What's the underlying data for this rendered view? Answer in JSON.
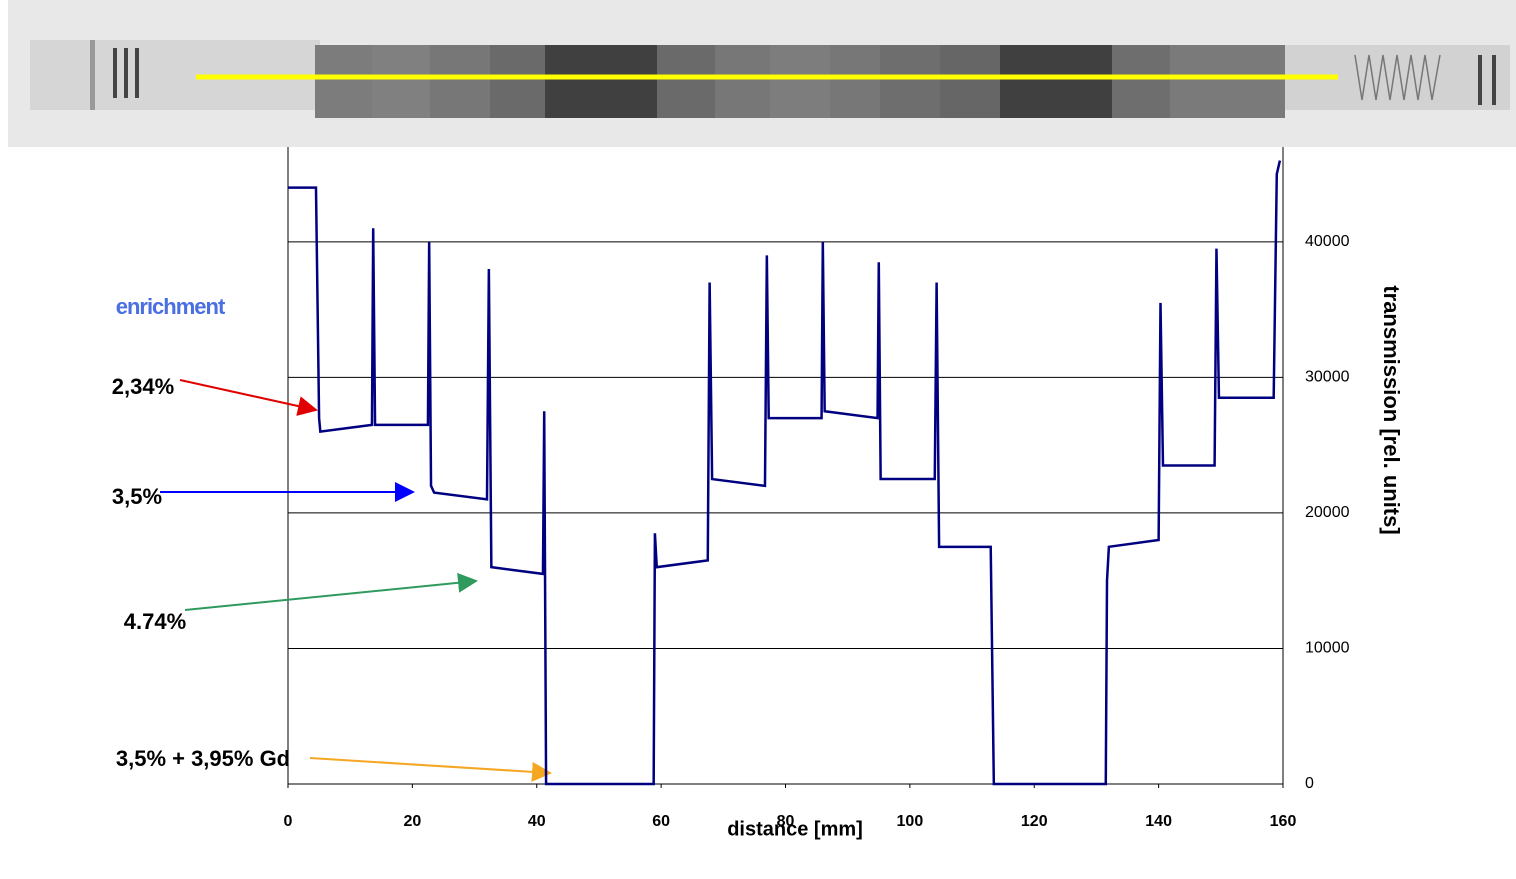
{
  "chart_data": {
    "type": "line",
    "xlabel": "distance [mm]",
    "ylabel": "transmission [rel. units]",
    "x": [
      0,
      4.5,
      5,
      5.2,
      13.5,
      13.7,
      14,
      22.5,
      22.7,
      23,
      23.5,
      32,
      32.3,
      32.7,
      41,
      41.2,
      41.5,
      58.8,
      59,
      59.3,
      67.5,
      67.8,
      68.2,
      76.7,
      77,
      77.3,
      85.8,
      86,
      86.3,
      94.8,
      95,
      95.3,
      104,
      104.3,
      104.7,
      113,
      113.5,
      131.5,
      131.7,
      132,
      140,
      140.3,
      140.7,
      149,
      149.3,
      149.7,
      158.5,
      159,
      159.5
    ],
    "values": [
      44000,
      44000,
      27000,
      26000,
      26500,
      41000,
      26500,
      26500,
      40000,
      22000,
      21500,
      21000,
      38000,
      16000,
      15500,
      27500,
      0,
      0,
      18500,
      16000,
      16500,
      37000,
      22500,
      22000,
      39000,
      27000,
      27000,
      40000,
      27500,
      27000,
      38500,
      22500,
      22500,
      37000,
      17500,
      17500,
      0,
      0,
      15000,
      17500,
      18000,
      35500,
      23500,
      23500,
      39500,
      28500,
      28500,
      45000,
      46000
    ],
    "color": "#000080",
    "xlim": [
      0,
      160
    ],
    "xticks": [
      0,
      20,
      40,
      60,
      80,
      100,
      120,
      140,
      160
    ],
    "ylim": [
      0,
      47000
    ],
    "yticks": [
      0,
      10000,
      20000,
      30000,
      40000
    ],
    "grid": true,
    "annotations": [
      "enrichment",
      "2,34%",
      "3,5%",
      "4.74%",
      "3,5% + 3,95% Gd"
    ]
  }
}
